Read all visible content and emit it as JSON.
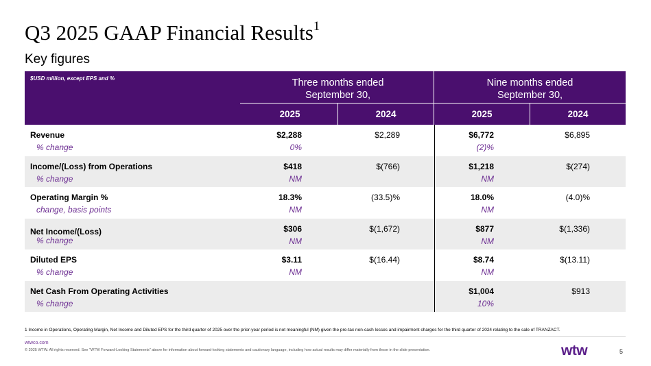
{
  "title": "Q3 2025 GAAP Financial Results",
  "title_sup": "1",
  "subtitle": "Key figures",
  "table": {
    "unit_note": "$USD million, except EPS and %",
    "group1": {
      "line1": "Three months ended",
      "line2": "September 30,"
    },
    "group2": {
      "line1": "Nine months ended",
      "line2": "September 30,"
    },
    "years": [
      "2025",
      "2024",
      "2025",
      "2024"
    ],
    "rows": [
      {
        "label": "Revenue",
        "sub": "% change",
        "v1": "$2,288",
        "v2": "$2,289",
        "v3": "$6,772",
        "v4": "$6,895",
        "c1": "0%",
        "c3": "(2)%"
      },
      {
        "label": "Income/(Loss) from Operations",
        "sub": "% change",
        "v1": "$418",
        "v2": "$(766)",
        "v3": "$1,218",
        "v4": "$(274)",
        "c1": "NM",
        "c3": "NM"
      },
      {
        "label": "Operating Margin %",
        "sub": "change, basis points",
        "v1": "18.3%",
        "v2": "(33.5)%",
        "v3": "18.0%",
        "v4": "(4.0)%",
        "c1": "NM",
        "c3": "NM"
      },
      {
        "label": "Net Income/(Loss)",
        "sub": "% change",
        "v1": "$306",
        "v2": "$(1,672)",
        "v3": "$877",
        "v4": "$(1,336)",
        "c1": "NM",
        "c3": "NM"
      },
      {
        "label": "Diluted EPS",
        "sub": "% change",
        "v1": "$3.11",
        "v2": "$(16.44)",
        "v3": "$8.74",
        "v4": "$(13.11)",
        "c1": "NM",
        "c3": "NM"
      },
      {
        "label": "Net Cash From Operating Activities",
        "sub": "% change",
        "v1": "",
        "v2": "",
        "v3": "$1,004",
        "v4": "$913",
        "c1": "",
        "c3": "10%"
      }
    ]
  },
  "footnote": "1 Income in Operations, Operating Margin, Net Income and Diluted EPS for the third quarter of 2025 over the prior-year period is not meaningful (NM) given the pre-tax non-cash losses and impairment charges for the third quarter of 2024 relating to the sale of TRANZACT.",
  "footer": {
    "url": "wtwco.com",
    "copyright": "© 2025 WTW. All rights reserved. See \"WTW Forward-Looking Statements\" above for information about forward-looking statements and cautionary language, including how actual results may differ materially from those in the slide presentation.",
    "logo": "wtw",
    "page": "5"
  },
  "colors": {
    "header_bg": "#4a0f6e",
    "accent": "#6b2c91",
    "shade": "#ececec"
  }
}
